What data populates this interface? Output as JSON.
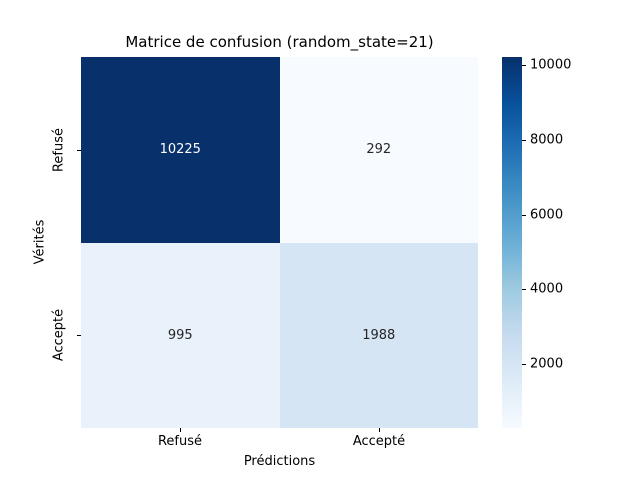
{
  "chart_data": {
    "type": "heatmap",
    "title": "Matrice de confusion (random_state=21)",
    "xlabel": "Prédictions",
    "ylabel": "Vérités",
    "x_categories": [
      "Refusé",
      "Accepté"
    ],
    "y_categories": [
      "Refusé",
      "Accepté"
    ],
    "values": [
      [
        10225,
        292
      ],
      [
        995,
        1988
      ]
    ],
    "colormap": "Blues",
    "vmin": 292,
    "vmax": 10225,
    "colorbar_ticks": [
      2000,
      4000,
      6000,
      8000,
      10000
    ],
    "colorbar_position": "right",
    "grid": false
  },
  "colors": {
    "cmap_dark": "#08306b",
    "cmap_light": "#f7fbff",
    "annot_dark": "#262626",
    "annot_light": "#ffffff"
  },
  "cells": [
    {
      "label": "10225",
      "bg": "#08306b",
      "fg": "#ffffff"
    },
    {
      "label": "292",
      "bg": "#f7fbff",
      "fg": "#262626"
    },
    {
      "label": "995",
      "bg": "#e9f2fa",
      "fg": "#262626"
    },
    {
      "label": "1988",
      "bg": "#d5e5f4",
      "fg": "#262626"
    }
  ]
}
